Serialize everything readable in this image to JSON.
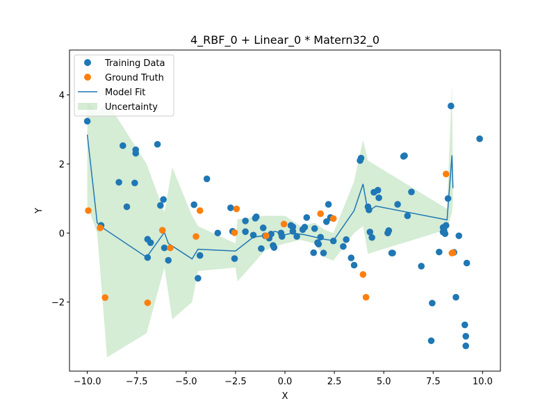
{
  "chart_data": {
    "type": "scatter",
    "title": "4_RBF_0 + Linear_0 * Matern32_0",
    "xlabel": "X",
    "ylabel": "Y",
    "xlim": [
      -10.9,
      10.9
    ],
    "ylim": [
      -4.0,
      5.3
    ],
    "xticks": [
      -10.0,
      -7.5,
      -5.0,
      -2.5,
      0.0,
      2.5,
      5.0,
      7.5,
      10.0
    ],
    "xtick_labels": [
      "−10.0",
      "−7.5",
      "−5.0",
      "−2.5",
      "0.0",
      "2.5",
      "5.0",
      "7.5",
      "10.0"
    ],
    "yticks": [
      -2,
      0,
      2,
      4
    ],
    "ytick_labels": [
      "−2",
      "0",
      "2",
      "4"
    ],
    "grid": false,
    "legend_position": "upper-left",
    "series": [
      {
        "name": "Training Data",
        "kind": "scatter",
        "color": "#1f77b4",
        "points": [
          [
            -10.0,
            3.24
          ],
          [
            -9.3,
            0.22
          ],
          [
            -8.4,
            1.47
          ],
          [
            -8.2,
            2.53
          ],
          [
            -8.0,
            0.76
          ],
          [
            -7.6,
            1.45
          ],
          [
            -7.55,
            2.31
          ],
          [
            -7.55,
            2.41
          ],
          [
            -6.95,
            -0.18
          ],
          [
            -6.95,
            -0.71
          ],
          [
            -6.8,
            -0.28
          ],
          [
            -6.45,
            2.57
          ],
          [
            -6.3,
            0.8
          ],
          [
            -6.15,
            0.97
          ],
          [
            -6.1,
            -0.43
          ],
          [
            -5.9,
            -0.79
          ],
          [
            -4.6,
            0.82
          ],
          [
            -4.4,
            -1.31
          ],
          [
            -4.3,
            -0.65
          ],
          [
            -3.95,
            1.57
          ],
          [
            -3.4,
            0.0
          ],
          [
            -2.75,
            0.73
          ],
          [
            -2.65,
            0.05
          ],
          [
            -2.55,
            -0.74
          ],
          [
            -2.0,
            0.35
          ],
          [
            -2.0,
            0.04
          ],
          [
            -1.6,
            -0.06
          ],
          [
            -1.5,
            0.43
          ],
          [
            -1.45,
            0.47
          ],
          [
            -1.2,
            -0.45
          ],
          [
            -1.1,
            0.15
          ],
          [
            -1.0,
            -0.08
          ],
          [
            -0.8,
            -0.15
          ],
          [
            -0.7,
            -0.03
          ],
          [
            -0.6,
            -0.36
          ],
          [
            -0.55,
            -0.42
          ],
          [
            -0.2,
            0.0
          ],
          [
            -0.15,
            -0.1
          ],
          [
            0.3,
            0.22
          ],
          [
            0.4,
            0.18
          ],
          [
            0.4,
            0.05
          ],
          [
            0.6,
            -0.1
          ],
          [
            0.9,
            0.1
          ],
          [
            1.0,
            0.17
          ],
          [
            1.1,
            0.45
          ],
          [
            1.45,
            -0.57
          ],
          [
            1.5,
            0.13
          ],
          [
            1.65,
            -0.28
          ],
          [
            1.7,
            -0.32
          ],
          [
            1.8,
            -0.12
          ],
          [
            1.95,
            -0.58
          ],
          [
            2.1,
            0.33
          ],
          [
            2.2,
            0.83
          ],
          [
            2.3,
            0.45
          ],
          [
            2.45,
            -0.23
          ],
          [
            2.95,
            -0.39
          ],
          [
            3.1,
            -0.19
          ],
          [
            3.35,
            -0.72
          ],
          [
            3.5,
            -0.93
          ],
          [
            3.8,
            2.1
          ],
          [
            3.85,
            2.17
          ],
          [
            4.2,
            0.76
          ],
          [
            4.25,
            0.67
          ],
          [
            4.3,
            0.03
          ],
          [
            4.4,
            -0.13
          ],
          [
            4.5,
            1.18
          ],
          [
            4.7,
            1.24
          ],
          [
            4.75,
            1.02
          ],
          [
            5.2,
            0.0
          ],
          [
            5.25,
            0.07
          ],
          [
            5.4,
            -0.58
          ],
          [
            5.45,
            -0.58
          ],
          [
            5.7,
            0.83
          ],
          [
            6.0,
            2.22
          ],
          [
            6.05,
            2.24
          ],
          [
            6.2,
            0.5
          ],
          [
            6.4,
            1.19
          ],
          [
            6.9,
            -0.96
          ],
          [
            7.4,
            -3.12
          ],
          [
            7.45,
            -2.03
          ],
          [
            7.8,
            -0.55
          ],
          [
            8.0,
            0.16
          ],
          [
            8.0,
            0.03
          ],
          [
            8.05,
            0.07
          ],
          [
            8.1,
            -0.02
          ],
          [
            8.15,
            0.22
          ],
          [
            8.25,
            1.0
          ],
          [
            8.4,
            3.68
          ],
          [
            8.55,
            -0.56
          ],
          [
            8.65,
            -1.86
          ],
          [
            8.8,
            -0.08
          ],
          [
            9.1,
            -2.66
          ],
          [
            9.15,
            -2.99
          ],
          [
            9.15,
            -3.27
          ],
          [
            9.2,
            -0.87
          ],
          [
            9.85,
            2.73
          ]
        ]
      },
      {
        "name": "Ground Truth",
        "kind": "scatter",
        "color": "#ff7f0e",
        "points": [
          [
            -9.95,
            0.65
          ],
          [
            -9.35,
            0.15
          ],
          [
            -9.1,
            -1.87
          ],
          [
            -6.95,
            -2.02
          ],
          [
            -6.2,
            0.08
          ],
          [
            -5.8,
            -0.43
          ],
          [
            -4.5,
            -0.1
          ],
          [
            -4.3,
            0.65
          ],
          [
            -2.55,
            0.01
          ],
          [
            -2.45,
            0.7
          ],
          [
            -0.95,
            -0.08
          ],
          [
            -0.05,
            0.26
          ],
          [
            1.8,
            0.56
          ],
          [
            2.45,
            0.42
          ],
          [
            3.95,
            -1.2
          ],
          [
            4.1,
            -1.86
          ],
          [
            8.15,
            1.71
          ],
          [
            8.45,
            -0.58
          ],
          [
            8.5,
            -0.57
          ]
        ]
      },
      {
        "name": "Model Fit",
        "kind": "line",
        "color": "#1f77b4",
        "points": [
          [
            -10.0,
            2.85
          ],
          [
            -9.5,
            0.3
          ],
          [
            -9.3,
            0.18
          ],
          [
            -7.0,
            -0.7
          ],
          [
            -6.1,
            0.02
          ],
          [
            -5.9,
            -0.3
          ],
          [
            -4.7,
            -0.75
          ],
          [
            -4.4,
            -0.47
          ],
          [
            -2.55,
            -0.52
          ],
          [
            -2.5,
            -0.52
          ],
          [
            -1.6,
            -0.12
          ],
          [
            -1.0,
            -0.07
          ],
          [
            -0.5,
            0.05
          ],
          [
            0.0,
            -0.05
          ],
          [
            0.4,
            0.0
          ],
          [
            1.0,
            -0.05
          ],
          [
            2.0,
            -0.18
          ],
          [
            2.45,
            -0.22
          ],
          [
            3.5,
            0.65
          ],
          [
            3.95,
            1.42
          ],
          [
            4.2,
            0.62
          ],
          [
            4.6,
            0.78
          ],
          [
            8.2,
            0.38
          ],
          [
            8.45,
            2.25
          ],
          [
            8.5,
            1.3
          ]
        ]
      },
      {
        "name": "Uncertainty",
        "kind": "band",
        "color": "#2ca02c",
        "opacity": 0.2,
        "x": [
          -10.0,
          -9.5,
          -9.0,
          -7.0,
          -6.1,
          -5.7,
          -4.7,
          -4.4,
          -2.5,
          -2.4,
          -1.0,
          0.0,
          0.8,
          1.5,
          2.0,
          2.45,
          3.5,
          3.95,
          4.2,
          8.2,
          8.45,
          8.5
        ],
        "upper": [
          3.8,
          3.5,
          3.8,
          2.0,
          0.6,
          1.9,
          0.5,
          0.2,
          -0.3,
          0.4,
          0.5,
          0.5,
          0.2,
          0.3,
          0.1,
          0.0,
          1.5,
          2.7,
          2.1,
          0.7,
          4.3,
          1.6
        ],
        "lower": [
          0.8,
          0.0,
          -3.6,
          -2.9,
          -1.0,
          -2.5,
          -2.0,
          -1.1,
          -1.0,
          -1.4,
          -0.5,
          -0.3,
          -0.2,
          -0.3,
          -0.7,
          -0.8,
          0.0,
          0.2,
          -0.6,
          0.1,
          0.6,
          0.9
        ]
      }
    ]
  }
}
